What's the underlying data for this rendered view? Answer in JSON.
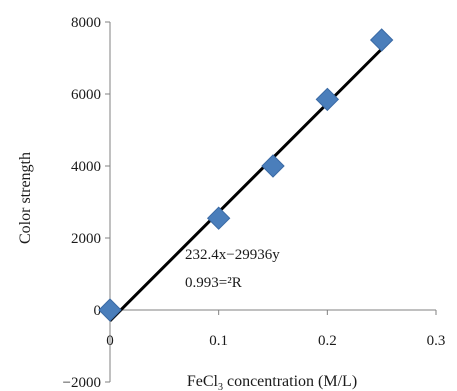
{
  "chart_data": {
    "type": "scatter",
    "xlabel_main": "FeCl",
    "xlabel_sub": "3",
    "xlabel_rest": " concentration (M/L)",
    "ylabel": "Color strength",
    "xlim": [
      0,
      0.3
    ],
    "ylim": [
      -2000,
      8000
    ],
    "x_ticks": [
      "0",
      "0.1",
      "0.2",
      "0.3"
    ],
    "x_tick_values": [
      0,
      0.1,
      0.2,
      0.3
    ],
    "y_ticks": [
      "-2000",
      "0",
      "2000",
      "4000",
      "6000",
      "8000"
    ],
    "y_tick_values": [
      -2000,
      0,
      2000,
      4000,
      6000,
      8000
    ],
    "grid": false,
    "series": [
      {
        "marker": "diamond",
        "color": "#4a7ebb",
        "x": [
          0,
          0.1,
          0.15,
          0.2,
          0.25
        ],
        "y": [
          0,
          2550,
          4000,
          5850,
          7500
        ]
      }
    ],
    "trendline": {
      "color": "#000000",
      "x": [
        0,
        0.25
      ],
      "y": [
        -300,
        7250
      ]
    },
    "annotations": {
      "equation": "232.4x−29936y",
      "r_squared": "0.993=²R"
    }
  }
}
